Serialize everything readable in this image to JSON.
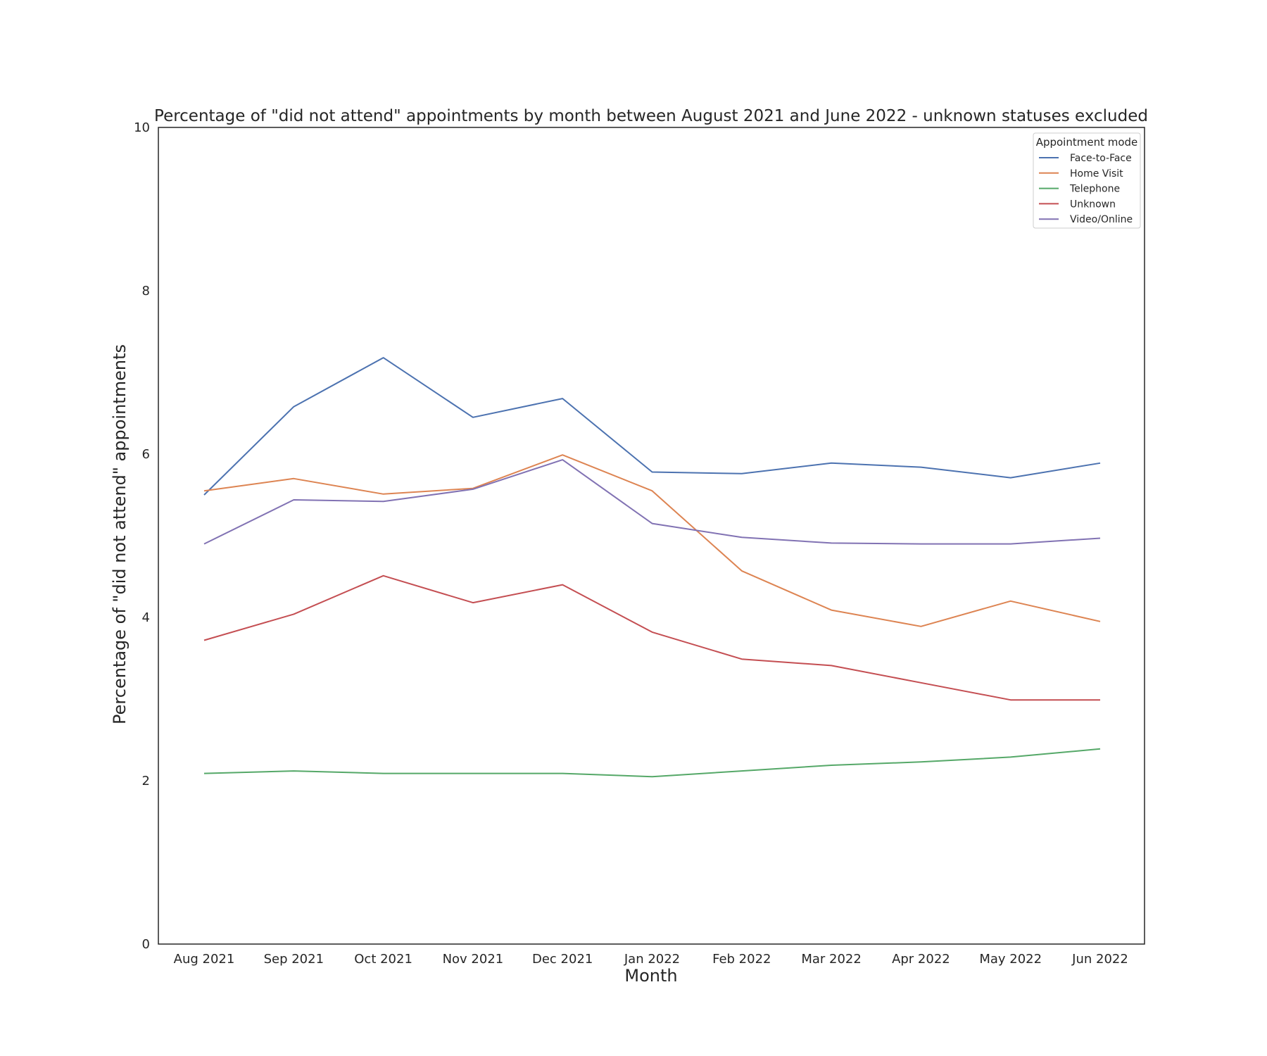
{
  "chart_data": {
    "type": "line",
    "title": "Percentage of \"did not attend\" appointments by month between August 2021 and June 2022 - unknown statuses excluded",
    "xlabel": "Month",
    "ylabel": "Percentage of \"did not attend\" appointments",
    "ylim": [
      0,
      10
    ],
    "yticks": [
      "0",
      "2",
      "4",
      "6",
      "8",
      "10"
    ],
    "categories": [
      "Aug 2021",
      "Sep 2021",
      "Oct 2021",
      "Nov 2021",
      "Dec 2021",
      "Jan 2022",
      "Feb 2022",
      "Mar 2022",
      "Apr 2022",
      "May 2022",
      "Jun 2022"
    ],
    "grid": false,
    "legend": {
      "title": "Appointment mode",
      "placement": "top-right"
    },
    "series": [
      {
        "name": "Face-to-Face",
        "color": "#4c72b0",
        "values": [
          5.5,
          6.58,
          7.18,
          6.45,
          6.68,
          5.78,
          5.76,
          5.89,
          5.84,
          5.71,
          5.89
        ]
      },
      {
        "name": "Home Visit",
        "color": "#dd8452",
        "values": [
          5.55,
          5.7,
          5.51,
          5.58,
          5.99,
          5.55,
          4.57,
          4.09,
          3.89,
          4.2,
          3.95
        ]
      },
      {
        "name": "Telephone",
        "color": "#55a868",
        "values": [
          2.09,
          2.12,
          2.09,
          2.09,
          2.09,
          2.05,
          2.12,
          2.19,
          2.23,
          2.29,
          2.39
        ]
      },
      {
        "name": "Unknown",
        "color": "#c44e52",
        "values": [
          3.72,
          4.04,
          4.51,
          4.18,
          4.4,
          3.82,
          3.49,
          3.41,
          3.2,
          2.99,
          2.99
        ]
      },
      {
        "name": "Video/Online",
        "color": "#8172b3",
        "values": [
          4.9,
          5.44,
          5.42,
          5.57,
          5.93,
          5.15,
          4.98,
          4.91,
          4.9,
          4.9,
          4.97
        ]
      }
    ]
  }
}
